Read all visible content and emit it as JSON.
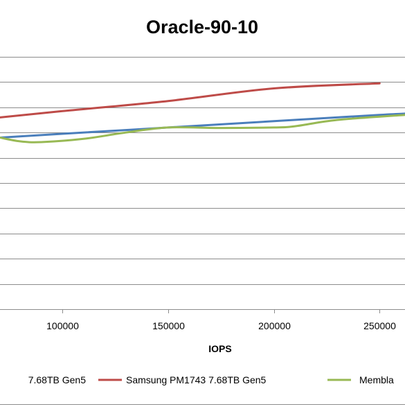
{
  "chart_data": {
    "type": "line",
    "title": "Oracle-90-10",
    "xlabel": "IOPS",
    "ylabel": "",
    "x_ticks": [
      100000,
      150000,
      200000,
      250000
    ],
    "x_tick_labels": [
      "100000",
      "150000",
      "200000",
      "250000"
    ],
    "xlim": [
      70500,
      262000
    ],
    "ylim": [
      0,
      10
    ],
    "y_gridlines": [
      1,
      2,
      3,
      4,
      5,
      6,
      7,
      8,
      9,
      10
    ],
    "grid": true,
    "legend_position": "bottom",
    "series": [
      {
        "name": "7.68TB Gen5",
        "color": "#4a7ebb",
        "x": [
          70500,
          100000,
          150000,
          200000,
          250000,
          262000
        ],
        "y": [
          6.8,
          6.95,
          7.2,
          7.45,
          7.7,
          7.75
        ]
      },
      {
        "name": "Samsung PM1743 7.68TB Gen5",
        "color": "#be4b48",
        "x": [
          70500,
          100000,
          150000,
          200000,
          250000
        ],
        "y": [
          7.6,
          7.85,
          8.25,
          8.75,
          8.95
        ]
      },
      {
        "name": "Membla",
        "color": "#98b954",
        "x": [
          70500,
          80000,
          90000,
          110000,
          130000,
          150000,
          175000,
          200000,
          210000,
          230000,
          262000
        ],
        "y": [
          6.8,
          6.65,
          6.62,
          6.75,
          7.0,
          7.2,
          7.18,
          7.2,
          7.25,
          7.5,
          7.7
        ]
      }
    ]
  }
}
